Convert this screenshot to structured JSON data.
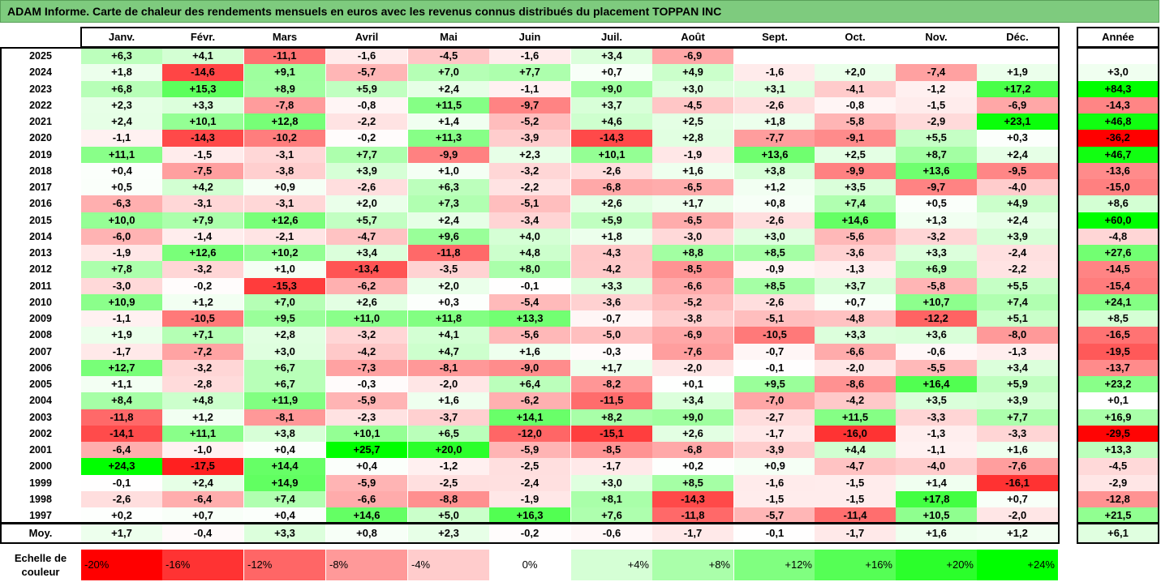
{
  "title": "ADAM Informe. Carte de chaleur des rendements mensuels en euros avec les revenus connus distribués du placement TOPPAN INC",
  "chart_data": {
    "type": "heatmap",
    "columns": [
      "Janv.",
      "Févr.",
      "Mars",
      "Avril",
      "Mai",
      "Juin",
      "Juil.",
      "Août",
      "Sept.",
      "Oct.",
      "Nov.",
      "Déc."
    ],
    "annual_label": "Année",
    "avg_label": "Moy.",
    "years": [
      "2025",
      "2024",
      "2023",
      "2022",
      "2021",
      "2020",
      "2019",
      "2018",
      "2017",
      "2016",
      "2015",
      "2014",
      "2013",
      "2012",
      "2011",
      "2010",
      "2009",
      "2008",
      "2007",
      "2006",
      "2005",
      "2004",
      "2003",
      "2002",
      "2001",
      "2000",
      "1999",
      "1998",
      "1997"
    ],
    "values": [
      [
        "+6,3",
        "+4,1",
        "-11,1",
        "-1,6",
        "-4,5",
        "-1,6",
        "+3,4",
        "-6,9",
        "",
        "",
        "",
        ""
      ],
      [
        "+1,8",
        "-14,6",
        "+9,1",
        "-5,7",
        "+7,0",
        "+7,7",
        "+0,7",
        "+4,9",
        "-1,6",
        "+2,0",
        "-7,4",
        "+1,9"
      ],
      [
        "+6,8",
        "+15,3",
        "+8,9",
        "+5,9",
        "+2,4",
        "-1,1",
        "+9,0",
        "+3,0",
        "+3,1",
        "-4,1",
        "-1,2",
        "+17,2"
      ],
      [
        "+2,3",
        "+3,3",
        "-7,8",
        "-0,8",
        "+11,5",
        "-9,7",
        "+3,7",
        "-4,5",
        "-2,6",
        "-0,8",
        "-1,5",
        "-6,9"
      ],
      [
        "+2,4",
        "+10,1",
        "+12,8",
        "-2,2",
        "+1,4",
        "-5,2",
        "+4,6",
        "+2,5",
        "+1,8",
        "-5,8",
        "-2,9",
        "+23,1"
      ],
      [
        "-1,1",
        "-14,3",
        "-10,2",
        "-0,2",
        "+11,3",
        "-3,9",
        "-14,3",
        "+2,8",
        "-7,7",
        "-9,1",
        "+5,5",
        "+0,3"
      ],
      [
        "+11,1",
        "-1,5",
        "-3,1",
        "+7,7",
        "-9,9",
        "+2,3",
        "+10,1",
        "-1,9",
        "+13,6",
        "+2,5",
        "+8,7",
        "+2,4"
      ],
      [
        "+0,4",
        "-7,5",
        "-3,8",
        "+3,9",
        "+1,0",
        "-3,2",
        "-2,6",
        "+1,6",
        "+3,8",
        "-9,9",
        "+13,6",
        "-9,5"
      ],
      [
        "+0,5",
        "+4,2",
        "+0,9",
        "-2,6",
        "+6,3",
        "-2,2",
        "-6,8",
        "-6,5",
        "+1,2",
        "+3,5",
        "-9,7",
        "-4,0"
      ],
      [
        "-6,3",
        "-3,1",
        "-3,1",
        "+2,0",
        "+7,3",
        "-5,1",
        "+2,6",
        "+1,7",
        "+0,8",
        "+7,4",
        "+0,5",
        "+4,9"
      ],
      [
        "+10,0",
        "+7,9",
        "+12,6",
        "+5,7",
        "+2,4",
        "-3,4",
        "+5,9",
        "-6,5",
        "-2,6",
        "+14,6",
        "+1,3",
        "+2,4"
      ],
      [
        "-6,0",
        "-1,4",
        "-2,1",
        "-4,7",
        "+9,6",
        "+4,0",
        "+1,8",
        "-3,0",
        "+3,0",
        "-5,6",
        "-3,2",
        "+3,9"
      ],
      [
        "-1,9",
        "+12,6",
        "+10,2",
        "+3,4",
        "-11,8",
        "+4,8",
        "-4,3",
        "+8,8",
        "+8,5",
        "-3,6",
        "+3,3",
        "-2,4"
      ],
      [
        "+7,8",
        "-3,2",
        "+1,0",
        "-13,4",
        "-3,5",
        "+8,0",
        "-4,2",
        "-8,5",
        "-0,9",
        "-1,3",
        "+6,9",
        "-2,2"
      ],
      [
        "-3,0",
        "-0,2",
        "-15,3",
        "-6,2",
        "+2,0",
        "-0,1",
        "+3,3",
        "-6,6",
        "+8,5",
        "+3,7",
        "-5,8",
        "+5,5"
      ],
      [
        "+10,9",
        "+1,2",
        "+7,0",
        "+2,6",
        "+0,3",
        "-5,4",
        "-3,6",
        "-5,2",
        "-2,6",
        "+0,7",
        "+10,7",
        "+7,4"
      ],
      [
        "-1,1",
        "-10,5",
        "+9,5",
        "+11,0",
        "+11,8",
        "+13,3",
        "-0,7",
        "-3,8",
        "-5,1",
        "-4,8",
        "-12,2",
        "+5,1"
      ],
      [
        "+1,9",
        "+7,1",
        "+2,8",
        "-3,2",
        "+4,1",
        "-5,6",
        "-5,0",
        "-6,9",
        "-10,5",
        "+3,3",
        "+3,6",
        "-8,0"
      ],
      [
        "-1,7",
        "-7,2",
        "+3,0",
        "-4,2",
        "+4,7",
        "+1,6",
        "-0,3",
        "-7,6",
        "-0,7",
        "-6,6",
        "-0,6",
        "-1,3"
      ],
      [
        "+12,7",
        "-3,2",
        "+6,7",
        "-7,3",
        "-8,1",
        "-9,0",
        "+1,7",
        "-2,0",
        "-0,1",
        "-2,0",
        "-5,5",
        "+3,4"
      ],
      [
        "+1,1",
        "-2,8",
        "+6,7",
        "-0,3",
        "-2,0",
        "+6,4",
        "-8,2",
        "+0,1",
        "+9,5",
        "-8,6",
        "+16,4",
        "+5,9"
      ],
      [
        "+8,4",
        "+4,8",
        "+11,9",
        "-5,9",
        "+1,6",
        "-6,2",
        "-11,5",
        "+3,4",
        "-7,0",
        "-4,2",
        "+3,5",
        "+3,9"
      ],
      [
        "-11,8",
        "+1,2",
        "-8,1",
        "-2,3",
        "-3,7",
        "+14,1",
        "+8,2",
        "+9,0",
        "-2,7",
        "+11,5",
        "-3,3",
        "+7,7"
      ],
      [
        "-14,1",
        "+11,1",
        "+3,8",
        "+10,1",
        "+6,5",
        "-12,0",
        "-15,1",
        "+2,6",
        "-1,7",
        "-16,0",
        "-1,3",
        "-3,3"
      ],
      [
        "-6,4",
        "-1,0",
        "+0,4",
        "+25,7",
        "+20,0",
        "-5,9",
        "-8,5",
        "-6,8",
        "-3,9",
        "+4,4",
        "-1,1",
        "+1,6"
      ],
      [
        "+24,3",
        "-17,5",
        "+14,4",
        "+0,4",
        "-1,2",
        "-2,5",
        "-1,7",
        "+0,2",
        "+0,9",
        "-4,7",
        "-4,0",
        "-7,6"
      ],
      [
        "-0,1",
        "+2,4",
        "+14,9",
        "-5,9",
        "-2,5",
        "-2,4",
        "+3,0",
        "+8,5",
        "-1,6",
        "-1,5",
        "+1,4",
        "-16,1"
      ],
      [
        "-2,6",
        "-6,4",
        "+7,4",
        "-6,6",
        "-8,8",
        "-1,9",
        "+8,1",
        "-14,3",
        "-1,5",
        "-1,5",
        "+17,8",
        "+0,7"
      ],
      [
        "+0,2",
        "+0,7",
        "+0,4",
        "+14,6",
        "+5,0",
        "+16,3",
        "+7,6",
        "-11,8",
        "-5,7",
        "-11,4",
        "+10,5",
        "-2,0"
      ]
    ],
    "annual": [
      "",
      "+3,0",
      "+84,3",
      "-14,3",
      "+46,8",
      "-36,2",
      "+46,7",
      "-13,6",
      "-15,0",
      "+8,6",
      "+60,0",
      "-4,8",
      "+27,6",
      "-14,5",
      "-15,4",
      "+24,1",
      "+8,5",
      "-16,5",
      "-19,5",
      "-13,7",
      "+23,2",
      "+0,1",
      "+16,9",
      "-29,5",
      "+13,3",
      "-4,5",
      "-2,9",
      "-12,8",
      "+21,5"
    ],
    "averages": [
      "+1,7",
      "-0,4",
      "+3,3",
      "+0,8",
      "+2,3",
      "-0,2",
      "-0,6",
      "-1,7",
      "-0,1",
      "-1,7",
      "+1,6",
      "+1,2"
    ],
    "annual_avg": "+6,1",
    "scale_label": "Echelle de couleur",
    "scale": [
      "-20%",
      "-16%",
      "-12%",
      "-8%",
      "-4%",
      "0%",
      "+4%",
      "+8%",
      "+12%",
      "+16%",
      "+20%",
      "+24%"
    ],
    "scale_values": [
      -20,
      -16,
      -12,
      -8,
      -4,
      0,
      4,
      8,
      12,
      16,
      20,
      24
    ]
  }
}
